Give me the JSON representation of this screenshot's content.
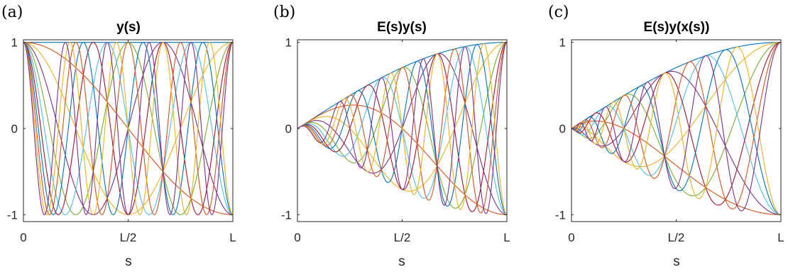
{
  "colors": [
    "#0072BD",
    "#D95319",
    "#EDB120",
    "#7E2F8E",
    "#77AC30",
    "#4DBEEE",
    "#A2142F"
  ],
  "chart_data": [
    {
      "type": "line",
      "panel": "(a)",
      "title": "y(s)",
      "xlabel": "s",
      "ylabel": "",
      "xlim": [
        0,
        1
      ],
      "ylim": [
        -1.08,
        1.03
      ],
      "x_ticks": [
        {
          "value": 0,
          "label": "0"
        },
        {
          "value": 0.5,
          "label": "L/2"
        },
        {
          "value": 1,
          "label": "L"
        }
      ],
      "y_ticks": [
        {
          "value": -1,
          "label": "-1"
        },
        {
          "value": 0,
          "label": "0"
        },
        {
          "value": 1,
          "label": "1"
        }
      ],
      "model": "cos(n*pi*s)",
      "mode_numbers": [
        0,
        1,
        2,
        3,
        4,
        5,
        6,
        7,
        8,
        9,
        10
      ]
    },
    {
      "type": "line",
      "panel": "(b)",
      "title": "E(s)y(s)",
      "xlabel": "s",
      "ylabel": "",
      "xlim": [
        0,
        1
      ],
      "ylim": [
        -1.08,
        1.03
      ],
      "x_ticks": [
        {
          "value": 0,
          "label": "0"
        },
        {
          "value": 0.5,
          "label": "L/2"
        },
        {
          "value": 1,
          "label": "L"
        }
      ],
      "y_ticks": [
        {
          "value": -1,
          "label": "-1"
        },
        {
          "value": 0,
          "label": "0"
        },
        {
          "value": 1,
          "label": "1"
        }
      ],
      "model": "E(s)*cos(n*pi*s)",
      "mode_numbers": [
        0,
        1,
        2,
        3,
        4,
        5,
        6,
        7,
        8,
        9,
        10
      ]
    },
    {
      "type": "line",
      "panel": "(c)",
      "title": "E(s)y(x(s))",
      "xlabel": "s",
      "ylabel": "",
      "xlim": [
        0,
        1
      ],
      "ylim": [
        -1.08,
        1.03
      ],
      "x_ticks": [
        {
          "value": 0,
          "label": "0"
        },
        {
          "value": 0.5,
          "label": "L/2"
        },
        {
          "value": 1,
          "label": "L"
        }
      ],
      "y_ticks": [
        {
          "value": -1,
          "label": "-1"
        },
        {
          "value": 0,
          "label": "0"
        },
        {
          "value": 1,
          "label": "1"
        }
      ],
      "model": "E(s)*cos(n*pi*x(s))",
      "mode_numbers": [
        0,
        1,
        2,
        3,
        4,
        5,
        6,
        7,
        8,
        9,
        10
      ]
    }
  ]
}
